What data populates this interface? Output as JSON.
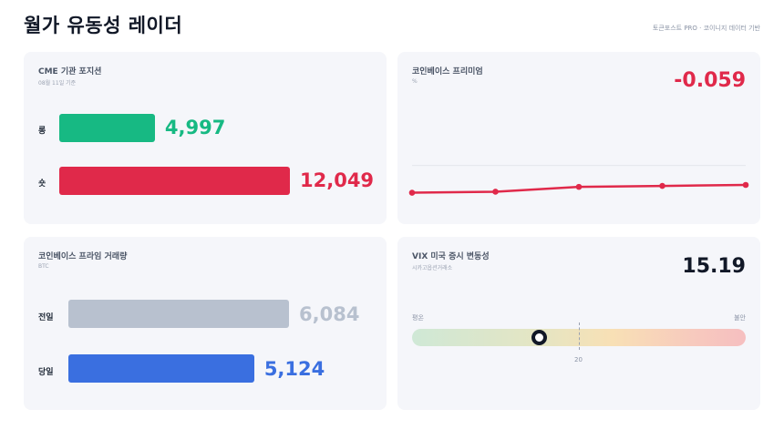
{
  "page": {
    "title": "월가 유동성 레이더",
    "source": "토큰포스트 PRO · 코이니지 데이터 기반"
  },
  "colors": {
    "green": "#17b983",
    "red": "#e0294a",
    "gray": "#b8c1cf",
    "blue": "#3a6fe0",
    "dark": "#111827"
  },
  "cme": {
    "title": "CME 기관 포지션",
    "subtitle": "08월 11일 기준",
    "rows": [
      {
        "label": "롱",
        "value": 4997,
        "display": "4,997"
      },
      {
        "label": "숏",
        "value": 12049,
        "display": "12,049"
      }
    ]
  },
  "premium": {
    "title": "코인베이스 프리미엄",
    "unit": "%",
    "value": "-0.059"
  },
  "volume": {
    "title": "코인베이스 프라임 거래량",
    "unit": "BTC",
    "rows": [
      {
        "label": "전일",
        "value": 6084,
        "display": "6,084"
      },
      {
        "label": "당일",
        "value": 5124,
        "display": "5,124"
      }
    ]
  },
  "vix": {
    "title": "VIX 미국 증시 변동성",
    "subtitle": "시카고옵션거래소",
    "value": "15.19",
    "scale_min_label": "평온",
    "scale_max_label": "불안",
    "reference": "20",
    "reference_level": 0.5,
    "level": 0.38
  },
  "chart_data": {
    "type": "line",
    "title": "",
    "x": [
      1,
      2,
      3,
      4,
      5
    ],
    "series": [
      {
        "values": [
          -0.14,
          -0.135,
          -0.11,
          -0.105,
          -0.1
        ]
      }
    ],
    "ylim": [
      -0.25,
      0.2
    ],
    "grid": true
  }
}
